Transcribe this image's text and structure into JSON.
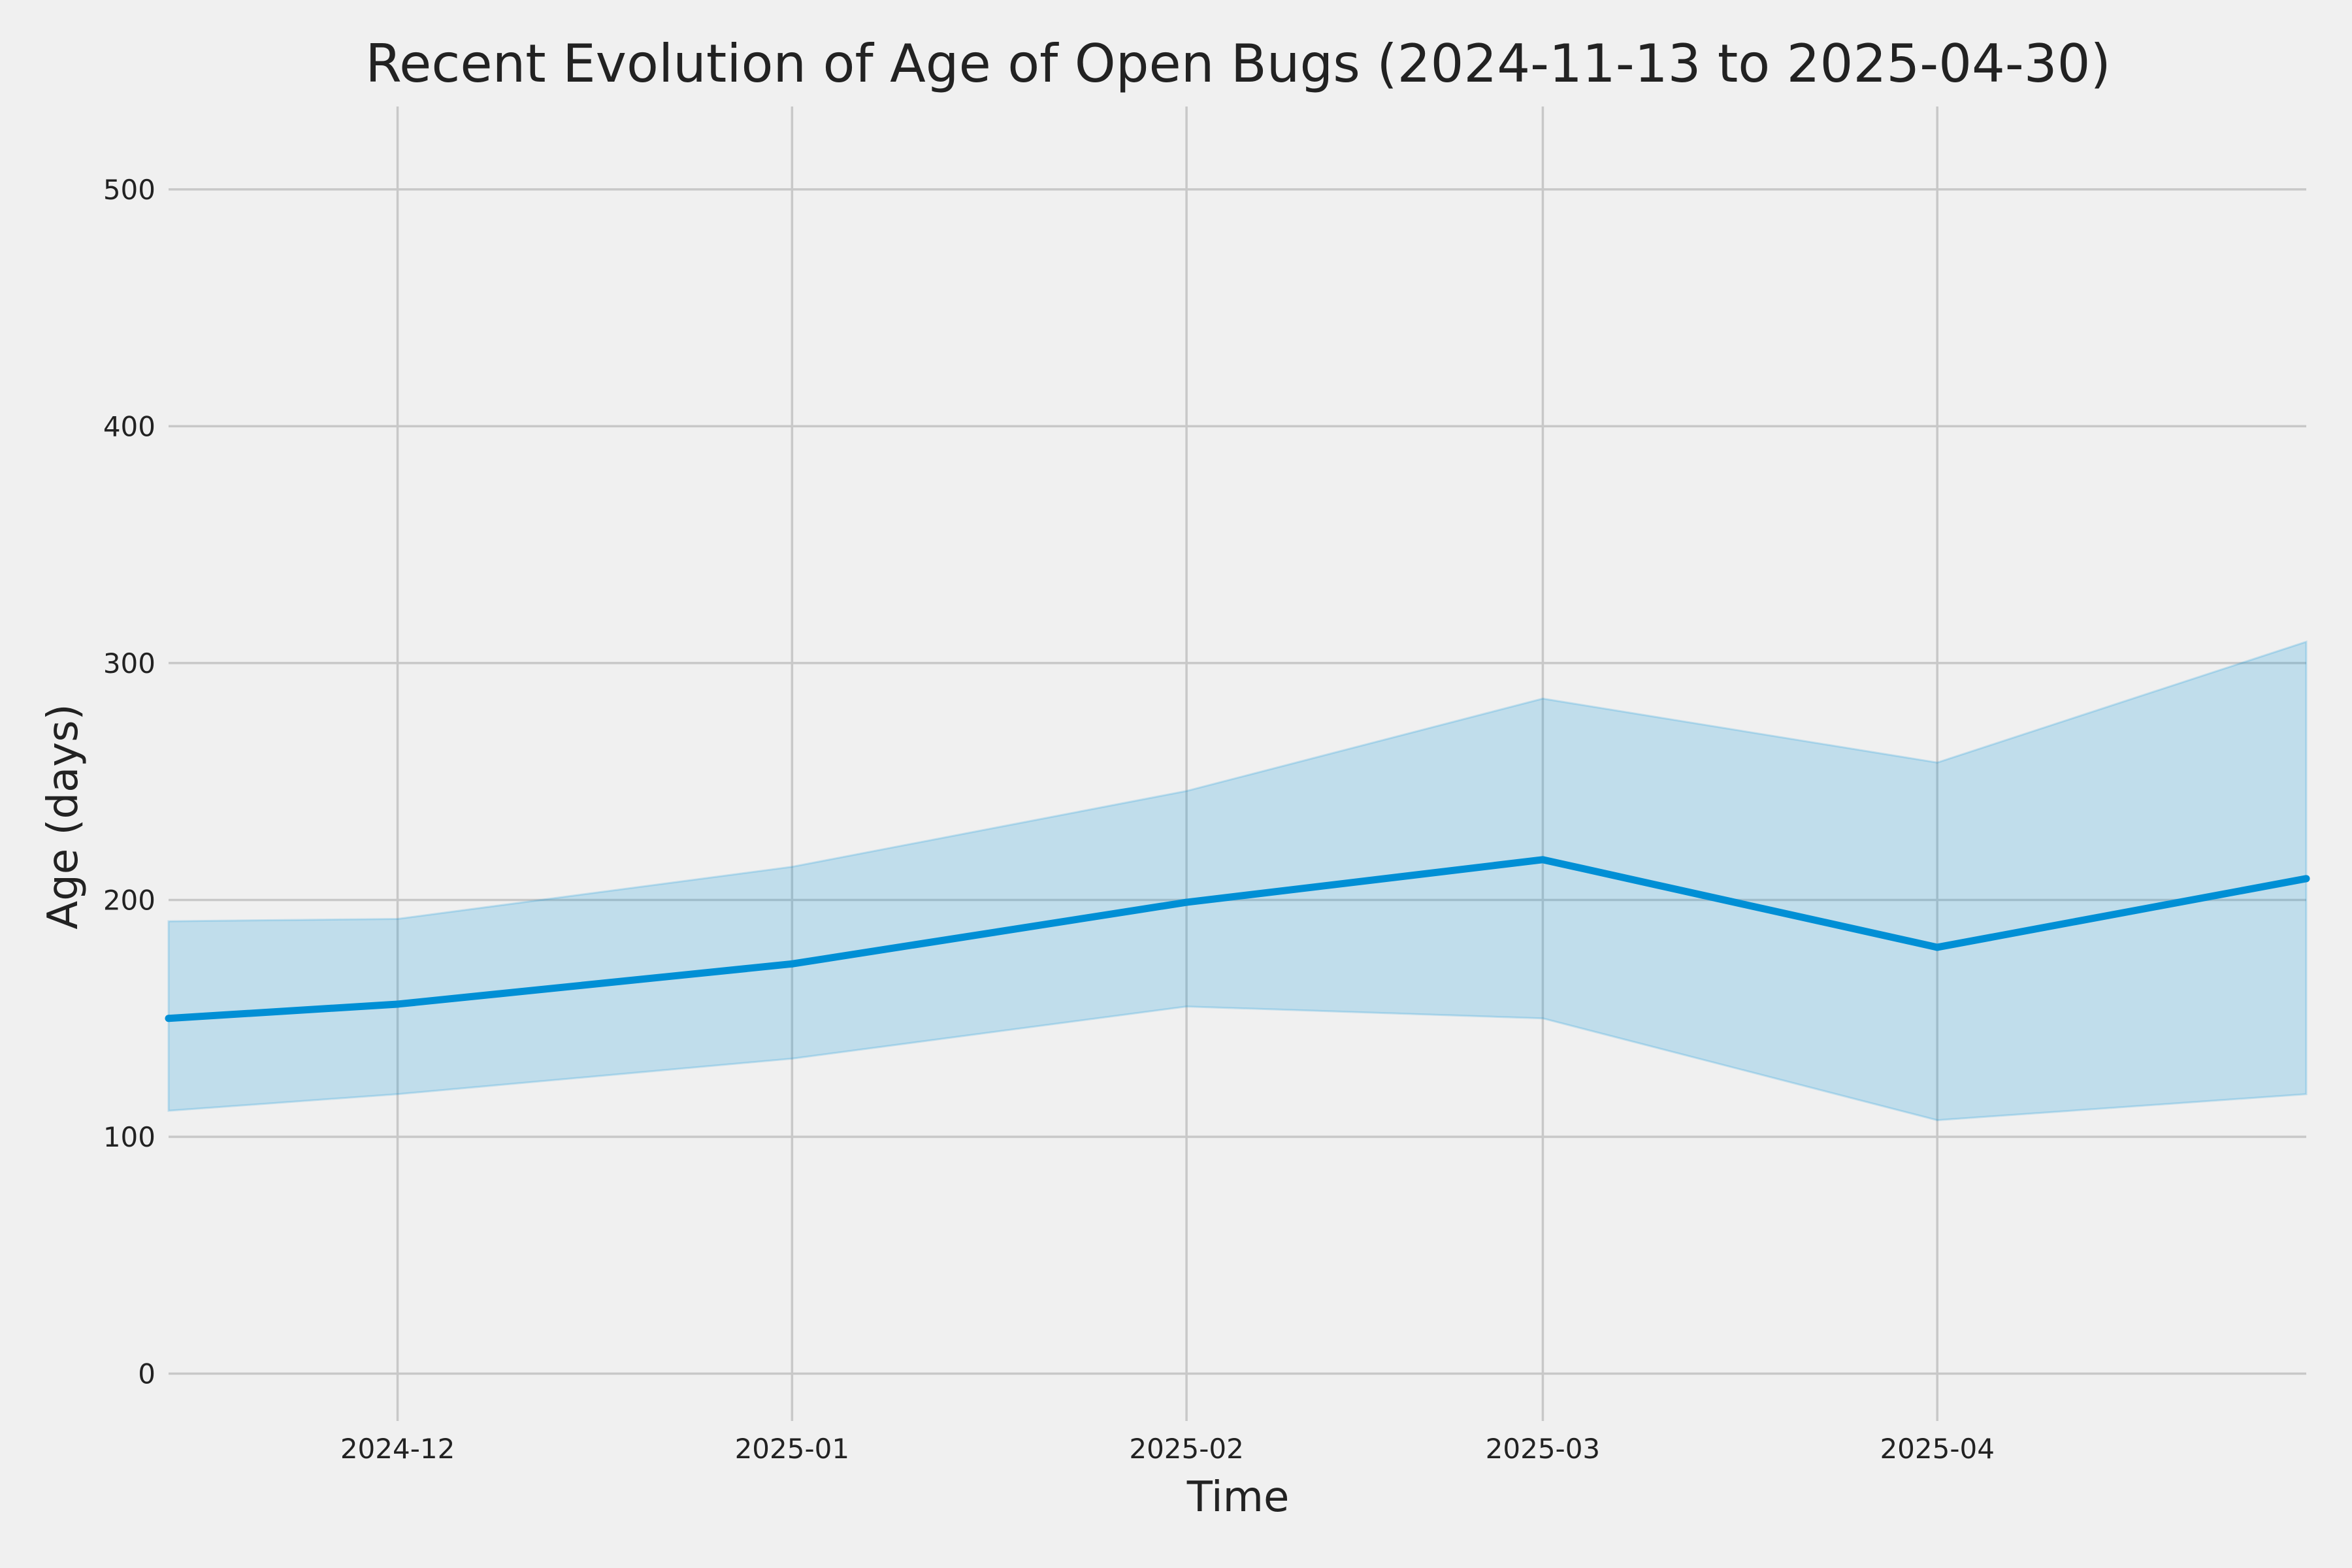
{
  "chart_data": {
    "type": "area",
    "title": "Recent Evolution of Age of Open Bugs (2024-11-13 to 2025-04-30)",
    "xlabel": "Time",
    "ylabel": "Age (days)",
    "x_range": [
      "2024-11-13",
      "2025-04-30"
    ],
    "ylim": [
      -20,
      535
    ],
    "grid": true,
    "legend": "none",
    "x_ticks": [
      {
        "value": "2024-12-01",
        "label": "2024-12"
      },
      {
        "value": "2025-01-01",
        "label": "2025-01"
      },
      {
        "value": "2025-02-01",
        "label": "2025-02"
      },
      {
        "value": "2025-03-01",
        "label": "2025-03"
      },
      {
        "value": "2025-04-01",
        "label": "2025-04"
      }
    ],
    "y_ticks": [
      0,
      100,
      200,
      300,
      400,
      500
    ],
    "x": [
      "2024-11-13",
      "2024-12-01",
      "2025-01-01",
      "2025-02-01",
      "2025-03-01",
      "2025-04-01",
      "2025-04-30"
    ],
    "series": [
      {
        "values": [
          150,
          156,
          173,
          199,
          217,
          180,
          209
        ],
        "lower": [
          111,
          118,
          133,
          155,
          150,
          107,
          118
        ],
        "upper": [
          191,
          192,
          214,
          246,
          285,
          258,
          309
        ]
      }
    ],
    "colors": {
      "background": "#f0f0f0",
      "grid": "#c8c8c8",
      "line": "#008fd5",
      "band": "#008fd5",
      "text": "#222222"
    }
  }
}
